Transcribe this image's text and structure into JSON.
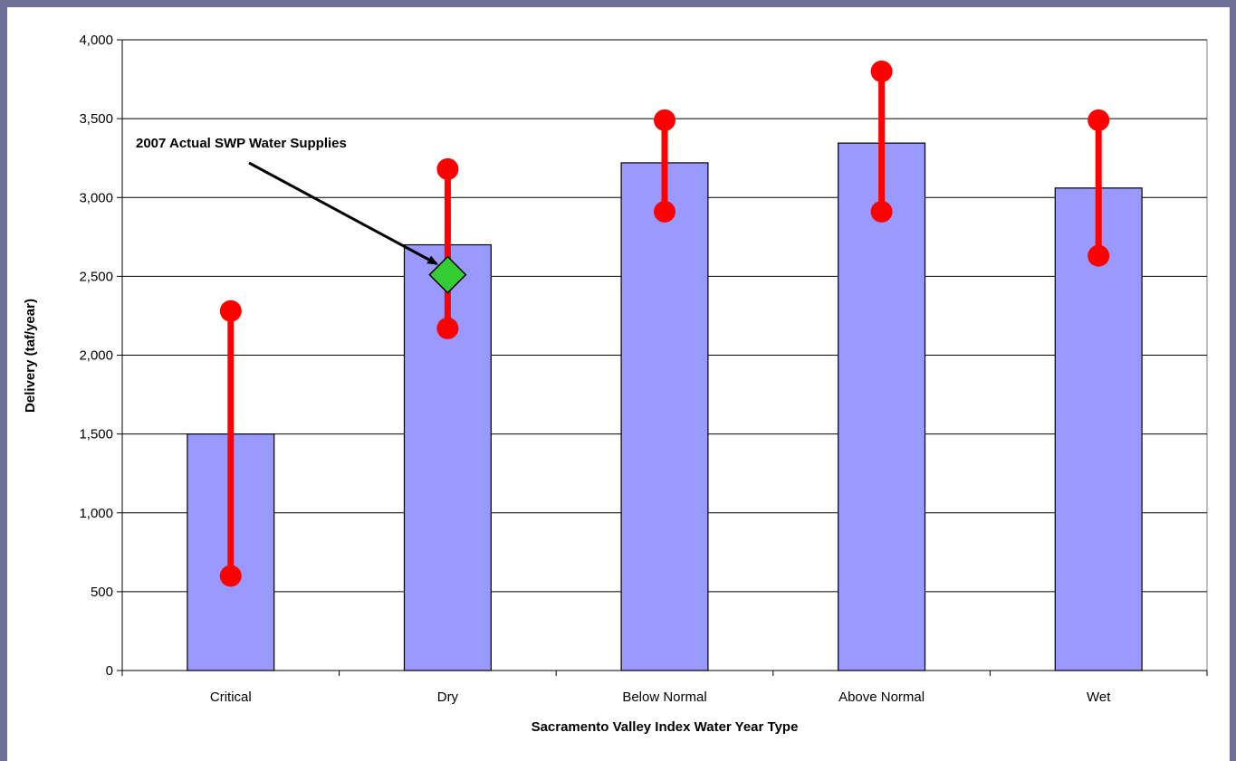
{
  "header": {
    "caption": ""
  },
  "chart_data": {
    "type": "bar",
    "title": "",
    "xlabel": "Sacramento Valley Index Water Year Type",
    "ylabel": "Delivery (taf/year)",
    "categories": [
      "Critical",
      "Dry",
      "Below Normal",
      "Above Normal",
      "Wet"
    ],
    "values": [
      1500,
      2700,
      3220,
      3345,
      3060
    ],
    "range_low": [
      600,
      2170,
      2910,
      2910,
      2630
    ],
    "range_high": [
      2280,
      3180,
      3490,
      3800,
      3490
    ],
    "ylim": [
      0,
      4000
    ],
    "yticks": [
      0,
      500,
      1000,
      1500,
      2000,
      2500,
      3000,
      3500,
      4000
    ],
    "ytick_labels": [
      "0",
      "500",
      "1,000",
      "1,500",
      "2,000",
      "2,500",
      "3,000",
      "3,500",
      "4,000"
    ],
    "grid": true,
    "colors": {
      "bar": "#9999ff",
      "range": "#ff0000",
      "marker": "#33cc33",
      "border": "#6f6f98"
    },
    "annotation": {
      "text": "2007 Actual SWP Water Supplies",
      "category": "Dry",
      "value": 2510,
      "marker": "diamond"
    }
  }
}
